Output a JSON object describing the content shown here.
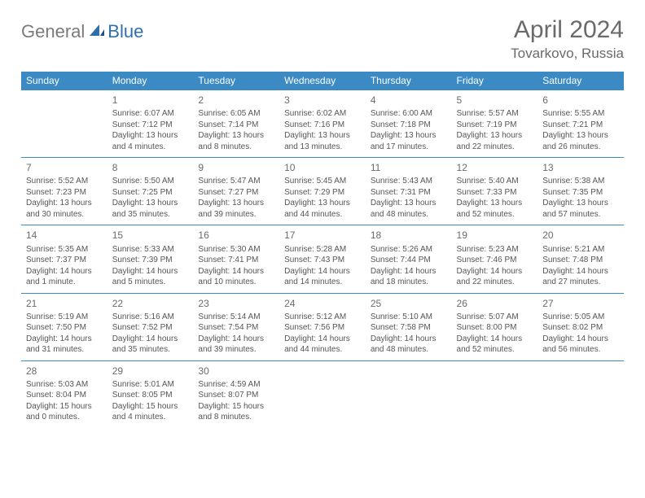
{
  "logo": {
    "part1": "General",
    "part2": "Blue"
  },
  "title": "April 2024",
  "location": "Tovarkovo, Russia",
  "colors": {
    "header_bg": "#3b8ac4",
    "header_text": "#ffffff",
    "row_divider": "#3b8ac4",
    "body_text": "#555555",
    "title_text": "#6a6a6a",
    "logo_gray": "#7a7a7a",
    "logo_blue": "#2f6faa",
    "background": "#ffffff"
  },
  "weekdays": [
    "Sunday",
    "Monday",
    "Tuesday",
    "Wednesday",
    "Thursday",
    "Friday",
    "Saturday"
  ],
  "weeks": [
    [
      null,
      {
        "n": "1",
        "sr": "6:07 AM",
        "ss": "7:12 PM",
        "dl": "13 hours and 4 minutes."
      },
      {
        "n": "2",
        "sr": "6:05 AM",
        "ss": "7:14 PM",
        "dl": "13 hours and 8 minutes."
      },
      {
        "n": "3",
        "sr": "6:02 AM",
        "ss": "7:16 PM",
        "dl": "13 hours and 13 minutes."
      },
      {
        "n": "4",
        "sr": "6:00 AM",
        "ss": "7:18 PM",
        "dl": "13 hours and 17 minutes."
      },
      {
        "n": "5",
        "sr": "5:57 AM",
        "ss": "7:19 PM",
        "dl": "13 hours and 22 minutes."
      },
      {
        "n": "6",
        "sr": "5:55 AM",
        "ss": "7:21 PM",
        "dl": "13 hours and 26 minutes."
      }
    ],
    [
      {
        "n": "7",
        "sr": "5:52 AM",
        "ss": "7:23 PM",
        "dl": "13 hours and 30 minutes."
      },
      {
        "n": "8",
        "sr": "5:50 AM",
        "ss": "7:25 PM",
        "dl": "13 hours and 35 minutes."
      },
      {
        "n": "9",
        "sr": "5:47 AM",
        "ss": "7:27 PM",
        "dl": "13 hours and 39 minutes."
      },
      {
        "n": "10",
        "sr": "5:45 AM",
        "ss": "7:29 PM",
        "dl": "13 hours and 44 minutes."
      },
      {
        "n": "11",
        "sr": "5:43 AM",
        "ss": "7:31 PM",
        "dl": "13 hours and 48 minutes."
      },
      {
        "n": "12",
        "sr": "5:40 AM",
        "ss": "7:33 PM",
        "dl": "13 hours and 52 minutes."
      },
      {
        "n": "13",
        "sr": "5:38 AM",
        "ss": "7:35 PM",
        "dl": "13 hours and 57 minutes."
      }
    ],
    [
      {
        "n": "14",
        "sr": "5:35 AM",
        "ss": "7:37 PM",
        "dl": "14 hours and 1 minute."
      },
      {
        "n": "15",
        "sr": "5:33 AM",
        "ss": "7:39 PM",
        "dl": "14 hours and 5 minutes."
      },
      {
        "n": "16",
        "sr": "5:30 AM",
        "ss": "7:41 PM",
        "dl": "14 hours and 10 minutes."
      },
      {
        "n": "17",
        "sr": "5:28 AM",
        "ss": "7:43 PM",
        "dl": "14 hours and 14 minutes."
      },
      {
        "n": "18",
        "sr": "5:26 AM",
        "ss": "7:44 PM",
        "dl": "14 hours and 18 minutes."
      },
      {
        "n": "19",
        "sr": "5:23 AM",
        "ss": "7:46 PM",
        "dl": "14 hours and 22 minutes."
      },
      {
        "n": "20",
        "sr": "5:21 AM",
        "ss": "7:48 PM",
        "dl": "14 hours and 27 minutes."
      }
    ],
    [
      {
        "n": "21",
        "sr": "5:19 AM",
        "ss": "7:50 PM",
        "dl": "14 hours and 31 minutes."
      },
      {
        "n": "22",
        "sr": "5:16 AM",
        "ss": "7:52 PM",
        "dl": "14 hours and 35 minutes."
      },
      {
        "n": "23",
        "sr": "5:14 AM",
        "ss": "7:54 PM",
        "dl": "14 hours and 39 minutes."
      },
      {
        "n": "24",
        "sr": "5:12 AM",
        "ss": "7:56 PM",
        "dl": "14 hours and 44 minutes."
      },
      {
        "n": "25",
        "sr": "5:10 AM",
        "ss": "7:58 PM",
        "dl": "14 hours and 48 minutes."
      },
      {
        "n": "26",
        "sr": "5:07 AM",
        "ss": "8:00 PM",
        "dl": "14 hours and 52 minutes."
      },
      {
        "n": "27",
        "sr": "5:05 AM",
        "ss": "8:02 PM",
        "dl": "14 hours and 56 minutes."
      }
    ],
    [
      {
        "n": "28",
        "sr": "5:03 AM",
        "ss": "8:04 PM",
        "dl": "15 hours and 0 minutes."
      },
      {
        "n": "29",
        "sr": "5:01 AM",
        "ss": "8:05 PM",
        "dl": "15 hours and 4 minutes."
      },
      {
        "n": "30",
        "sr": "4:59 AM",
        "ss": "8:07 PM",
        "dl": "15 hours and 8 minutes."
      },
      null,
      null,
      null,
      null
    ]
  ],
  "labels": {
    "sunrise": "Sunrise: ",
    "sunset": "Sunset: ",
    "daylight": "Daylight: "
  }
}
